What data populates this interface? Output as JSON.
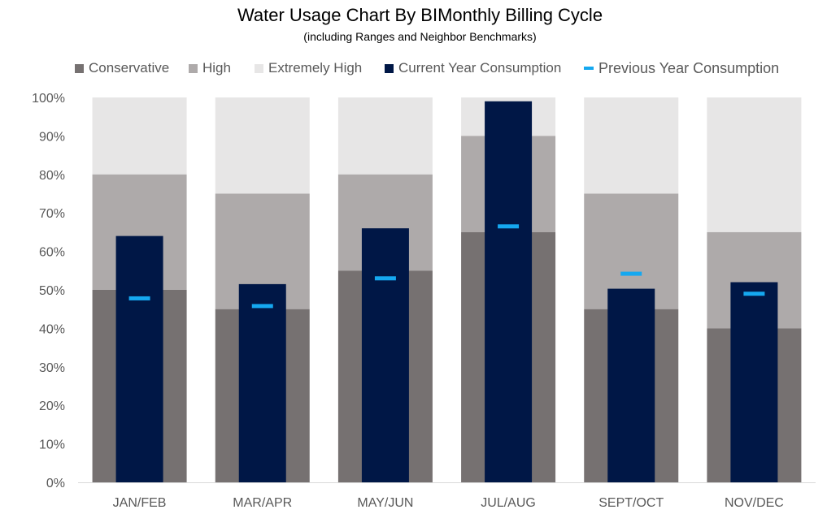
{
  "chart_data": {
    "type": "bar",
    "title": "Water Usage Chart By BIMonthly Billing Cycle",
    "subtitle": "(including Ranges and Neighbor Benchmarks)",
    "categories": [
      "JAN/FEB",
      "MAR/APR",
      "MAY/JUN",
      "JUL/AUG",
      "SEPT/OCT",
      "NOV/DEC"
    ],
    "ylim": [
      0,
      100
    ],
    "yticks": [
      0,
      10,
      20,
      30,
      40,
      50,
      60,
      70,
      80,
      90,
      100
    ],
    "ytick_labels": [
      "0%",
      "10%",
      "20%",
      "30%",
      "40%",
      "50%",
      "60%",
      "70%",
      "80%",
      "90%",
      "100%"
    ],
    "grid": false,
    "legend_position": "top",
    "series": [
      {
        "name": "Conservative",
        "values": [
          50,
          45,
          55,
          65,
          45,
          40
        ],
        "color": "#767171"
      },
      {
        "name": "High",
        "values": [
          80,
          75,
          80,
          90,
          75,
          65
        ],
        "color": "#AEAAAA"
      },
      {
        "name": "Extremely High",
        "values": [
          100,
          100,
          100,
          100,
          100,
          100
        ],
        "color": "#E7E6E6"
      },
      {
        "name": "Current Year Consumption",
        "values": [
          64,
          51.5,
          66,
          99,
          50.3,
          52
        ],
        "color": "#001746"
      },
      {
        "name": "Previous Year Consumption",
        "values": [
          47.8,
          45.8,
          53,
          66.5,
          54.2,
          49
        ],
        "color": "#15A8F0"
      }
    ]
  }
}
